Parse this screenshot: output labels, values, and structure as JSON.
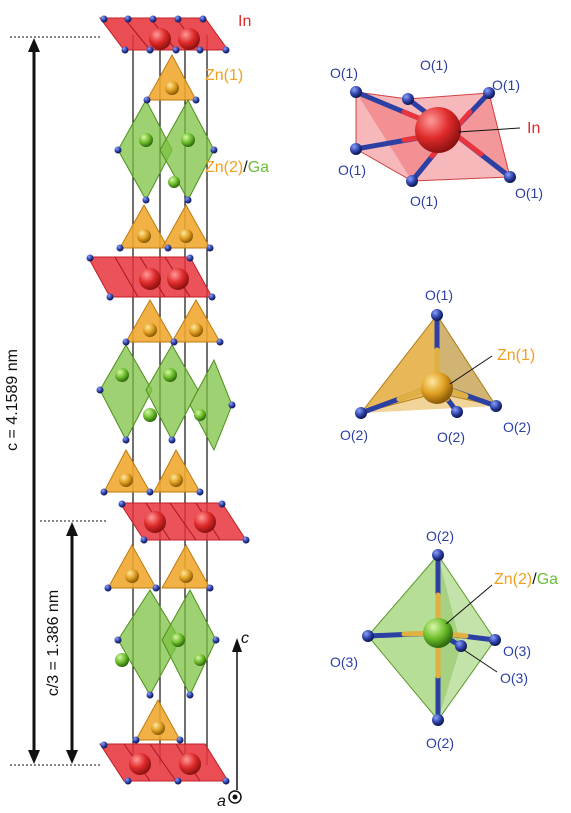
{
  "structure": {
    "label_in": "In",
    "label_zn1": "Zn(1)",
    "label_zn2": "Zn(2)",
    "label_slash": "/",
    "label_ga": "Ga"
  },
  "dimensions": {
    "c_full_label": "c = 4.1589 nm",
    "c_third_label": "c/3 = 1.386 nm"
  },
  "axes": {
    "c_label": "c",
    "a_label": "a"
  },
  "in_site": {
    "center_label": "In",
    "oxygen_labels": [
      "O(1)",
      "O(1)",
      "O(1)",
      "O(1)",
      "O(1)",
      "O(1)"
    ]
  },
  "zn1_site": {
    "center_label": "Zn(1)",
    "oxygen_labels": [
      "O(1)",
      "O(2)",
      "O(2)",
      "O(2)"
    ]
  },
  "zn2_site": {
    "center_label_zn": "Zn(2)",
    "center_label_slash": "/",
    "center_label_ga": "Ga",
    "oxygen_labels": [
      "O(2)",
      "O(3)",
      "O(3)",
      "O(3)",
      "O(2)"
    ]
  },
  "colors": {
    "indium": "#e8343c",
    "zinc": "#f0a830",
    "gallium_zinc": "#7cc242",
    "oxygen": "#2c3fa3",
    "label_oxygen": "#2c3fa3",
    "label_in": "#e02b2b",
    "label_zn": "#f0a020",
    "label_ga": "#6bbf3a"
  }
}
